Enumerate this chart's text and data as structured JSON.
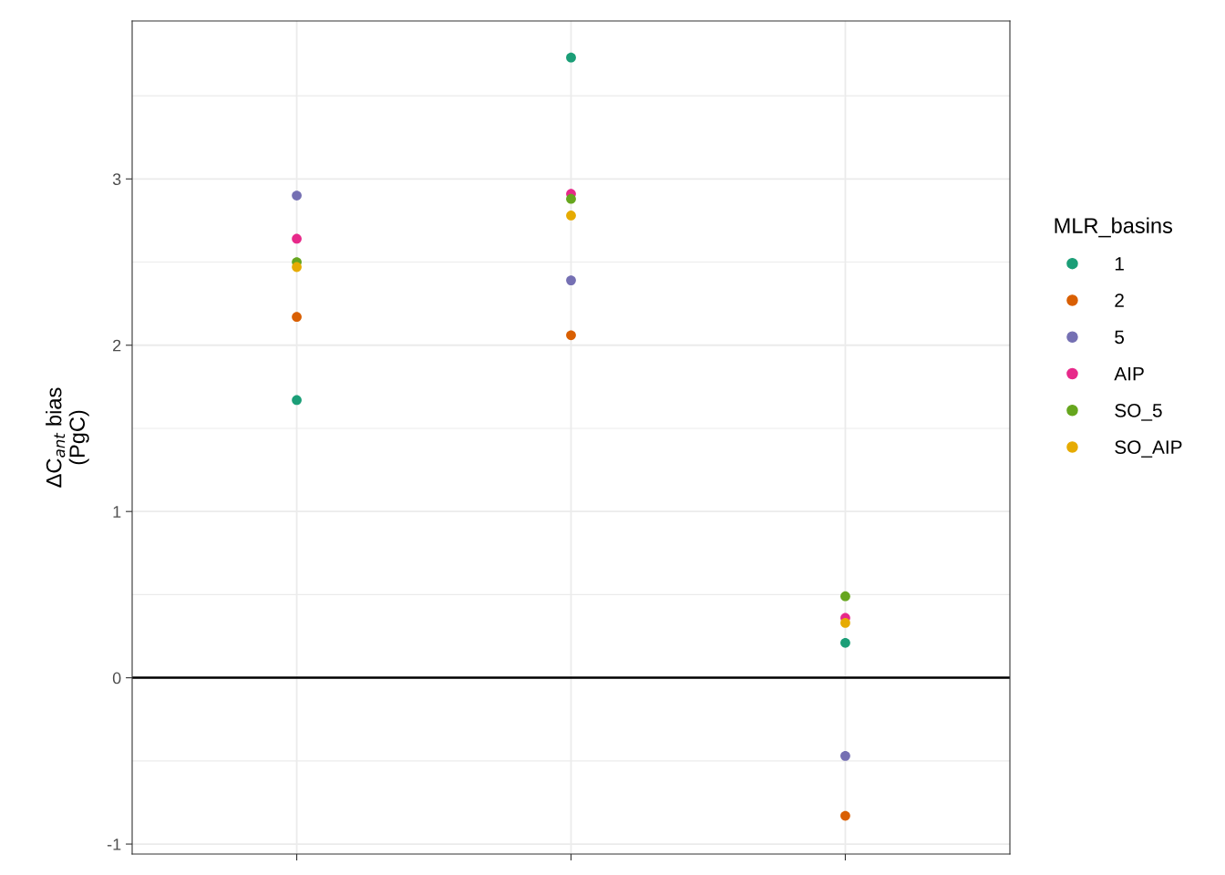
{
  "chart_data": {
    "type": "scatter",
    "ylabel": "ΔC$_{ant}$ bias\n(PgC)",
    "legend_title": "MLR_basins",
    "categories": [
      null,
      null,
      null
    ],
    "series": [
      {
        "name": "1",
        "color": "#1b9e77",
        "values": [
          1.67,
          3.73,
          0.21
        ]
      },
      {
        "name": "2",
        "color": "#d95f02",
        "values": [
          2.17,
          2.06,
          -0.83
        ]
      },
      {
        "name": "5",
        "color": "#7570b3",
        "values": [
          2.9,
          2.39,
          -0.47
        ]
      },
      {
        "name": "AIP",
        "color": "#e7298a",
        "values": [
          2.64,
          2.91,
          0.36
        ]
      },
      {
        "name": "SO_5",
        "color": "#66a61e",
        "values": [
          2.5,
          2.88,
          0.49
        ]
      },
      {
        "name": "SO_AIP",
        "color": "#e6ab02",
        "values": [
          2.47,
          2.78,
          0.33
        ]
      }
    ],
    "ylim": [
      -1.06,
      3.95
    ],
    "yticks": [
      -1,
      0,
      1,
      2,
      3
    ],
    "ref_lines": [
      {
        "axis": "y",
        "value": 0,
        "color": "#000000"
      }
    ],
    "grid": true,
    "legend": "right",
    "marker": "circle"
  }
}
